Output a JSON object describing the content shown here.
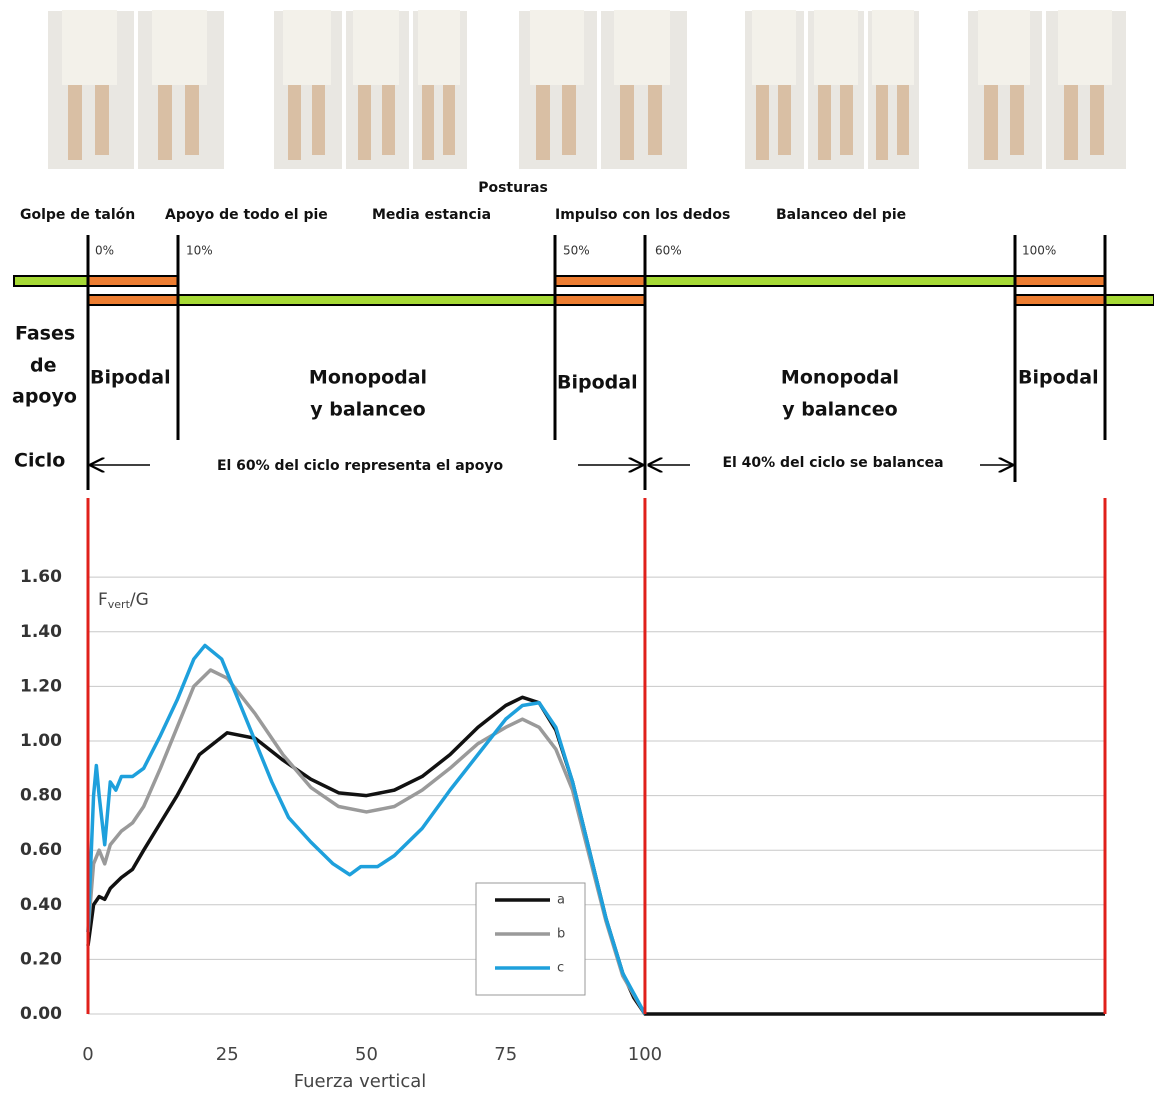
{
  "diagram": {
    "postures_label": "Posturas",
    "events": [
      "Golpe de talón",
      "Apoyo de todo el pie",
      "Media estancia",
      "Impulso con los dedos",
      "Balanceo del pie"
    ],
    "percents": [
      "0%",
      "10%",
      "50%",
      "60%",
      "100%"
    ],
    "phases_label": [
      "Fases",
      "de",
      "apoyo"
    ],
    "phases": [
      [
        "Bipodal"
      ],
      [
        "Monopodal",
        "y balanceo"
      ],
      [
        "Bipodal"
      ],
      [
        "Monopodal",
        "y balanceo"
      ],
      [
        "Bipodal"
      ]
    ],
    "cycle_label": "Ciclo",
    "cycle_notes": [
      "El 60% del ciclo representa el apoyo",
      "El 40% del ciclo se balancea"
    ]
  },
  "chart_data": {
    "type": "line",
    "ylabel": {
      "base": "F",
      "sub": "vert",
      "rest": "/G"
    },
    "xlabel": "Fuerza vertical",
    "xlim": [
      0,
      182.6
    ],
    "ylim": [
      0,
      1.89
    ],
    "xticks": [
      0,
      25,
      50,
      75,
      100
    ],
    "yticks": [
      {
        "value": 0,
        "label": "0.00"
      },
      {
        "value": 0.2,
        "label": "0.20"
      },
      {
        "value": 0.4,
        "label": "0.40"
      },
      {
        "value": 0.6,
        "label": "0.60"
      },
      {
        "value": 0.8,
        "label": "0.80"
      },
      {
        "value": 1.0,
        "label": "1.00"
      },
      {
        "value": 1.2,
        "label": "1.20"
      },
      {
        "value": 1.4,
        "label": "1.40"
      },
      {
        "value": 1.6,
        "label": "1.60"
      }
    ],
    "grid": true,
    "reference_lines": {
      "x": [
        0,
        100,
        182.6
      ],
      "color": "#e0201b"
    },
    "series": [
      {
        "name": "a",
        "color": "#111111",
        "x": [
          0,
          1,
          2,
          3,
          4,
          6,
          8,
          10,
          13,
          16,
          20,
          25,
          30,
          35,
          40,
          45,
          50,
          55,
          60,
          65,
          70,
          75,
          78,
          81,
          84,
          87,
          90,
          93,
          96,
          98,
          100,
          182.6
        ],
        "values": [
          0.25,
          0.4,
          0.43,
          0.42,
          0.46,
          0.5,
          0.53,
          0.6,
          0.7,
          0.8,
          0.95,
          1.03,
          1.01,
          0.93,
          0.86,
          0.81,
          0.8,
          0.82,
          0.87,
          0.95,
          1.05,
          1.13,
          1.16,
          1.14,
          1.04,
          0.85,
          0.6,
          0.35,
          0.15,
          0.06,
          0,
          0
        ]
      },
      {
        "name": "b",
        "color": "#9a9a9a",
        "x": [
          0,
          1,
          2,
          3,
          4,
          6,
          8,
          10,
          13,
          16,
          19,
          22,
          25,
          30,
          35,
          40,
          45,
          50,
          55,
          60,
          65,
          70,
          75,
          78,
          81,
          84,
          87,
          90,
          93,
          96,
          100
        ],
        "values": [
          0.3,
          0.55,
          0.6,
          0.55,
          0.62,
          0.67,
          0.7,
          0.76,
          0.9,
          1.05,
          1.2,
          1.26,
          1.23,
          1.1,
          0.95,
          0.83,
          0.76,
          0.74,
          0.76,
          0.82,
          0.9,
          0.99,
          1.05,
          1.08,
          1.05,
          0.97,
          0.82,
          0.58,
          0.34,
          0.14,
          0
        ]
      },
      {
        "name": "c",
        "color": "#1ea0dc",
        "x": [
          0,
          1,
          1.5,
          2,
          3,
          4,
          5,
          6,
          8,
          10,
          13,
          16,
          19,
          21,
          24,
          27,
          30,
          33,
          36,
          40,
          44,
          47,
          49,
          52,
          55,
          60,
          65,
          70,
          75,
          78,
          81,
          84,
          87,
          90,
          93,
          96,
          100
        ],
        "values": [
          0.3,
          0.8,
          0.91,
          0.8,
          0.62,
          0.85,
          0.82,
          0.87,
          0.87,
          0.9,
          1.02,
          1.15,
          1.3,
          1.35,
          1.3,
          1.15,
          1.0,
          0.85,
          0.72,
          0.63,
          0.55,
          0.51,
          0.54,
          0.54,
          0.58,
          0.68,
          0.82,
          0.95,
          1.08,
          1.13,
          1.14,
          1.05,
          0.85,
          0.6,
          0.35,
          0.15,
          0
        ]
      }
    ]
  }
}
